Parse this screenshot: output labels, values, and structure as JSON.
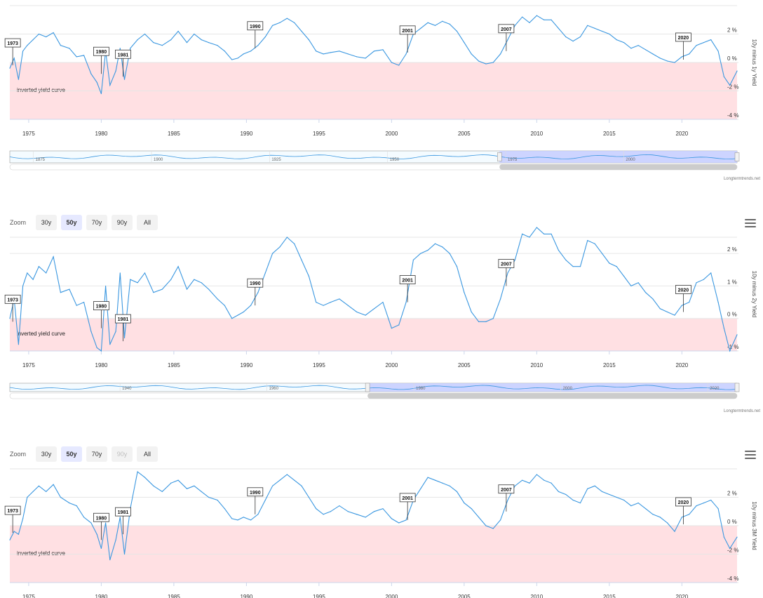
{
  "zoom": {
    "label": "Zoom",
    "buttons": [
      "30y",
      "50y",
      "70y",
      "90y",
      "All"
    ]
  },
  "credit": "Longtermtrends.net",
  "region_label": "inverted yield curve",
  "colors": {
    "line": "#3a97e0",
    "inverted_band": "#ffe0e3",
    "navigator_fill": "#c6ccff",
    "grid": "#e6e6e6"
  },
  "chart_data": [
    {
      "type": "line",
      "ylabel": "10y minus 1y Yield",
      "xlim": [
        1973.7,
        2023.8
      ],
      "ylim": [
        -4,
        4
      ],
      "x_ticks": [
        1975,
        1980,
        1985,
        1990,
        1995,
        2000,
        2005,
        2010,
        2015,
        2020
      ],
      "y_ticks": [
        {
          "v": 2,
          "label": "2 %"
        },
        {
          "v": 0,
          "label": "0 %"
        },
        {
          "v": -2,
          "label": "-2 %"
        },
        {
          "v": -4,
          "label": "-4 %"
        }
      ],
      "inverted_band": [
        -4,
        0
      ],
      "navigator": {
        "ticks": [
          1875,
          1900,
          1925,
          1950,
          1975,
          2000
        ],
        "range": [
          1870,
          2024
        ],
        "selected": [
          1973.7,
          2024
        ]
      },
      "flags": [
        {
          "x": 1973.9,
          "y": -0.2,
          "label": "1973"
        },
        {
          "x": 1980.0,
          "y": -0.8,
          "label": "1980"
        },
        {
          "x": 1981.5,
          "y": -1.0,
          "label": "1981"
        },
        {
          "x": 1990.6,
          "y": 1.0,
          "label": "1990"
        },
        {
          "x": 2001.1,
          "y": 0.7,
          "label": "2001"
        },
        {
          "x": 2007.9,
          "y": 0.8,
          "label": "2007"
        },
        {
          "x": 2020.1,
          "y": 0.2,
          "label": "2020"
        }
      ],
      "series": [
        {
          "x": [
            1973.7,
            1974.0,
            1974.3,
            1974.6,
            1974.9,
            1975.3,
            1975.7,
            1976.2,
            1976.7,
            1977.2,
            1977.8,
            1978.3,
            1978.8,
            1979.3,
            1979.7,
            1980.0,
            1980.3,
            1980.6,
            1981.0,
            1981.3,
            1981.6,
            1982.0,
            1982.5,
            1983.0,
            1983.6,
            1984.2,
            1984.8,
            1985.3,
            1985.9,
            1986.4,
            1986.9,
            1987.4,
            1988.0,
            1988.5,
            1989.0,
            1989.4,
            1989.8,
            1990.3,
            1990.8,
            1991.3,
            1991.8,
            1992.3,
            1992.8,
            1993.3,
            1993.8,
            1994.3,
            1994.8,
            1995.3,
            1995.8,
            1996.4,
            1997.0,
            1997.6,
            1998.2,
            1998.8,
            1999.4,
            2000.0,
            2000.5,
            2001.0,
            2001.5,
            2002.0,
            2002.5,
            2003.0,
            2003.5,
            2004.0,
            2004.5,
            2005.0,
            2005.5,
            2006.0,
            2006.5,
            2007.0,
            2007.5,
            2008.0,
            2008.5,
            2009.0,
            2009.5,
            2010.0,
            2010.5,
            2011.0,
            2011.5,
            2012.0,
            2012.5,
            2013.0,
            2013.5,
            2014.0,
            2014.5,
            2015.0,
            2015.5,
            2016.0,
            2016.5,
            2017.0,
            2017.5,
            2018.0,
            2018.5,
            2019.0,
            2019.5,
            2020.0,
            2020.5,
            2021.0,
            2021.5,
            2022.0,
            2022.5,
            2022.9,
            2023.3,
            2023.8
          ],
          "y": [
            -0.4,
            0.3,
            -1.2,
            0.8,
            1.2,
            1.6,
            2.0,
            1.8,
            2.1,
            1.2,
            1.0,
            0.4,
            0.5,
            -0.8,
            -1.4,
            -2.2,
            0.8,
            -1.6,
            -0.6,
            1.0,
            -1.2,
            1.0,
            1.6,
            2.0,
            1.4,
            1.2,
            1.6,
            2.2,
            1.4,
            2.0,
            1.6,
            1.4,
            1.2,
            0.8,
            0.2,
            0.3,
            0.6,
            0.8,
            1.2,
            1.8,
            2.6,
            2.8,
            3.1,
            2.8,
            2.2,
            1.6,
            0.8,
            0.6,
            0.7,
            0.8,
            0.6,
            0.4,
            0.3,
            0.8,
            0.9,
            0.0,
            -0.2,
            0.6,
            2.0,
            2.4,
            2.8,
            2.6,
            2.9,
            2.7,
            2.2,
            1.4,
            0.6,
            0.1,
            -0.1,
            0.0,
            0.6,
            1.6,
            2.6,
            3.2,
            2.8,
            3.3,
            3.0,
            3.0,
            2.4,
            1.8,
            1.5,
            1.8,
            2.6,
            2.4,
            2.2,
            2.0,
            1.6,
            1.4,
            1.0,
            1.2,
            0.9,
            0.6,
            0.3,
            0.1,
            0.0,
            0.4,
            0.6,
            1.2,
            1.4,
            1.6,
            0.8,
            -1.0,
            -1.6,
            -0.6
          ]
        }
      ]
    },
    {
      "type": "line",
      "ylabel": "10y minus 2y Yield",
      "xlim": [
        1973.7,
        2023.8
      ],
      "ylim": [
        -1,
        2.5
      ],
      "x_ticks": [
        1975,
        1980,
        1985,
        1990,
        1995,
        2000,
        2005,
        2010,
        2015,
        2020
      ],
      "y_ticks": [
        {
          "v": 2,
          "label": "2 %"
        },
        {
          "v": 1,
          "label": "1 %"
        },
        {
          "v": 0,
          "label": "0 %"
        },
        {
          "v": -1,
          "label": "-1 %"
        }
      ],
      "inverted_band": [
        -1,
        0
      ],
      "navigator": {
        "ticks": [
          1940,
          1960,
          1980,
          2000,
          2020
        ],
        "range": [
          1925,
          2024
        ],
        "selected": [
          1973.7,
          2024
        ]
      },
      "flags": [
        {
          "x": 1973.9,
          "y": -0.1,
          "label": "1973"
        },
        {
          "x": 1980.0,
          "y": -0.3,
          "label": "1980"
        },
        {
          "x": 1981.5,
          "y": -0.7,
          "label": "1981"
        },
        {
          "x": 1990.6,
          "y": 0.4,
          "label": "1990"
        },
        {
          "x": 2001.1,
          "y": 0.5,
          "label": "2001"
        },
        {
          "x": 2007.9,
          "y": 1.0,
          "label": "2007"
        },
        {
          "x": 2020.1,
          "y": 0.2,
          "label": "2020"
        }
      ],
      "series": [
        {
          "x": [
            1973.7,
            1974.0,
            1974.3,
            1974.6,
            1974.9,
            1975.3,
            1975.7,
            1976.2,
            1976.7,
            1977.2,
            1977.8,
            1978.3,
            1978.8,
            1979.3,
            1979.7,
            1980.0,
            1980.3,
            1980.6,
            1981.0,
            1981.3,
            1981.6,
            1982.0,
            1982.5,
            1983.0,
            1983.6,
            1984.2,
            1984.8,
            1985.3,
            1985.9,
            1986.4,
            1986.9,
            1987.4,
            1988.0,
            1988.5,
            1989.0,
            1989.4,
            1989.8,
            1990.3,
            1990.8,
            1991.3,
            1991.8,
            1992.3,
            1992.8,
            1993.3,
            1993.8,
            1994.3,
            1994.8,
            1995.3,
            1995.8,
            1996.4,
            1997.0,
            1997.6,
            1998.2,
            1998.8,
            1999.4,
            2000.0,
            2000.5,
            2001.0,
            2001.5,
            2002.0,
            2002.5,
            2003.0,
            2003.5,
            2004.0,
            2004.5,
            2005.0,
            2005.5,
            2006.0,
            2006.5,
            2007.0,
            2007.5,
            2008.0,
            2008.5,
            2009.0,
            2009.5,
            2010.0,
            2010.5,
            2011.0,
            2011.5,
            2012.0,
            2012.5,
            2013.0,
            2013.5,
            2014.0,
            2014.5,
            2015.0,
            2015.5,
            2016.0,
            2016.5,
            2017.0,
            2017.5,
            2018.0,
            2018.5,
            2019.0,
            2019.5,
            2020.0,
            2020.5,
            2021.0,
            2021.5,
            2022.0,
            2022.5,
            2022.9,
            2023.3,
            2023.8
          ],
          "y": [
            0.0,
            0.6,
            -0.8,
            1.0,
            1.4,
            1.2,
            1.6,
            1.4,
            1.9,
            0.8,
            0.9,
            0.4,
            0.5,
            -0.4,
            -0.9,
            -1.0,
            1.0,
            -0.8,
            -0.4,
            1.4,
            -0.6,
            1.2,
            1.1,
            1.4,
            0.8,
            0.9,
            1.2,
            1.6,
            0.9,
            1.2,
            1.1,
            0.9,
            0.6,
            0.4,
            0.0,
            0.1,
            0.2,
            0.4,
            0.8,
            1.4,
            2.0,
            2.2,
            2.5,
            2.3,
            1.8,
            1.3,
            0.5,
            0.4,
            0.5,
            0.6,
            0.4,
            0.2,
            0.1,
            0.3,
            0.5,
            -0.3,
            -0.2,
            0.5,
            1.8,
            2.0,
            2.1,
            2.3,
            2.2,
            2.0,
            1.6,
            0.8,
            0.2,
            -0.1,
            -0.1,
            0.0,
            0.6,
            1.4,
            1.8,
            2.6,
            2.5,
            2.8,
            2.6,
            2.6,
            2.1,
            1.8,
            1.6,
            1.6,
            2.4,
            2.3,
            2.0,
            1.7,
            1.6,
            1.3,
            1.0,
            1.1,
            0.8,
            0.6,
            0.3,
            0.2,
            0.1,
            0.4,
            0.5,
            1.1,
            1.2,
            1.4,
            0.5,
            -0.3,
            -1.0,
            -0.5
          ]
        }
      ]
    },
    {
      "type": "line",
      "ylabel": "10y minus 3M Yield",
      "xlim": [
        1973.7,
        2023.8
      ],
      "ylim": [
        -4,
        4
      ],
      "x_ticks": [
        1975,
        1980,
        1985,
        1990,
        1995,
        2000,
        2005,
        2010,
        2015,
        2020
      ],
      "y_ticks": [
        {
          "v": 2,
          "label": "2 %"
        },
        {
          "v": 0,
          "label": "0 %"
        },
        {
          "v": -2,
          "label": "-2 %"
        },
        {
          "v": -4,
          "label": "-4 %"
        }
      ],
      "inverted_band": [
        -4,
        0
      ],
      "flags": [
        {
          "x": 1973.9,
          "y": -0.5,
          "label": "1973"
        },
        {
          "x": 1980.0,
          "y": -1.0,
          "label": "1980"
        },
        {
          "x": 1981.5,
          "y": -0.6,
          "label": "1981"
        },
        {
          "x": 1990.6,
          "y": 0.8,
          "label": "1990"
        },
        {
          "x": 2001.1,
          "y": 0.4,
          "label": "2001"
        },
        {
          "x": 2007.9,
          "y": 1.0,
          "label": "2007"
        },
        {
          "x": 2020.1,
          "y": 0.1,
          "label": "2020"
        }
      ],
      "series": [
        {
          "x": [
            1973.7,
            1974.0,
            1974.3,
            1974.6,
            1974.9,
            1975.3,
            1975.7,
            1976.2,
            1976.7,
            1977.2,
            1977.8,
            1978.3,
            1978.8,
            1979.3,
            1979.7,
            1980.0,
            1980.3,
            1980.6,
            1981.0,
            1981.3,
            1981.6,
            1982.0,
            1982.5,
            1983.0,
            1983.6,
            1984.2,
            1984.8,
            1985.3,
            1985.9,
            1986.4,
            1986.9,
            1987.4,
            1988.0,
            1988.5,
            1989.0,
            1989.4,
            1989.8,
            1990.3,
            1990.8,
            1991.3,
            1991.8,
            1992.3,
            1992.8,
            1993.3,
            1993.8,
            1994.3,
            1994.8,
            1995.3,
            1995.8,
            1996.4,
            1997.0,
            1997.6,
            1998.2,
            1998.8,
            1999.4,
            2000.0,
            2000.5,
            2001.0,
            2001.5,
            2002.0,
            2002.5,
            2003.0,
            2003.5,
            2004.0,
            2004.5,
            2005.0,
            2005.5,
            2006.0,
            2006.5,
            2007.0,
            2007.5,
            2008.0,
            2008.5,
            2009.0,
            2009.5,
            2010.0,
            2010.5,
            2011.0,
            2011.5,
            2012.0,
            2012.5,
            2013.0,
            2013.5,
            2014.0,
            2014.5,
            2015.0,
            2015.5,
            2016.0,
            2016.5,
            2017.0,
            2017.5,
            2018.0,
            2018.5,
            2019.0,
            2019.5,
            2020.0,
            2020.5,
            2021.0,
            2021.5,
            2022.0,
            2022.5,
            2022.9,
            2023.3,
            2023.8
          ],
          "y": [
            -1.0,
            -0.4,
            -0.6,
            0.5,
            2.0,
            2.4,
            2.8,
            2.4,
            2.9,
            2.0,
            1.6,
            1.4,
            0.6,
            0.2,
            -0.6,
            -1.6,
            0.2,
            -2.4,
            -1.0,
            0.6,
            -2.0,
            1.2,
            3.8,
            3.4,
            2.8,
            2.4,
            3.0,
            3.2,
            2.6,
            2.8,
            2.4,
            2.0,
            1.8,
            1.2,
            0.5,
            0.4,
            0.6,
            0.4,
            0.8,
            1.8,
            2.8,
            3.2,
            3.6,
            3.2,
            2.8,
            2.0,
            1.2,
            0.8,
            1.0,
            1.4,
            1.0,
            0.8,
            0.6,
            1.0,
            1.2,
            0.5,
            0.2,
            0.4,
            1.8,
            2.6,
            3.4,
            3.2,
            3.0,
            2.8,
            2.4,
            1.6,
            1.2,
            0.6,
            0.0,
            -0.2,
            0.4,
            1.8,
            2.8,
            3.2,
            3.0,
            3.6,
            3.2,
            3.0,
            2.4,
            2.2,
            1.8,
            1.6,
            2.6,
            2.8,
            2.4,
            2.2,
            2.0,
            1.8,
            1.4,
            1.6,
            1.2,
            0.8,
            0.6,
            0.2,
            -0.4,
            0.6,
            0.8,
            1.4,
            1.6,
            1.8,
            1.2,
            -0.8,
            -1.6,
            -0.8
          ]
        }
      ]
    }
  ]
}
